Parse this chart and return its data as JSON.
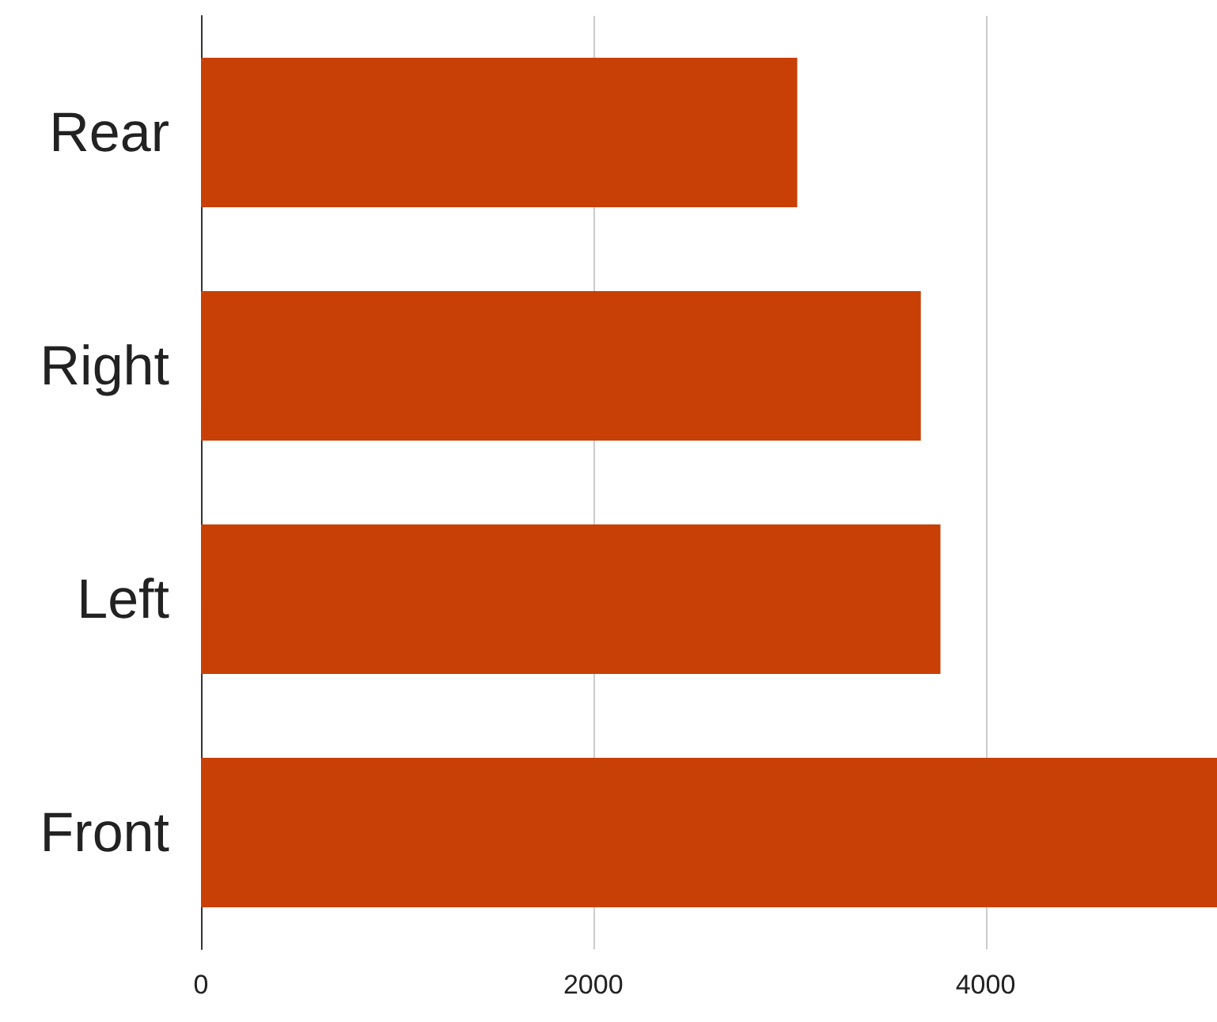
{
  "chart_data": {
    "type": "bar",
    "orientation": "horizontal",
    "categories": [
      "Rear",
      "Right",
      "Left",
      "Front"
    ],
    "values": [
      3040,
      3670,
      3770,
      5180
    ],
    "color": "#c84006",
    "xlim": [
      0,
      5180
    ],
    "xticks": [
      0,
      2000,
      4000
    ],
    "grid": "x"
  }
}
